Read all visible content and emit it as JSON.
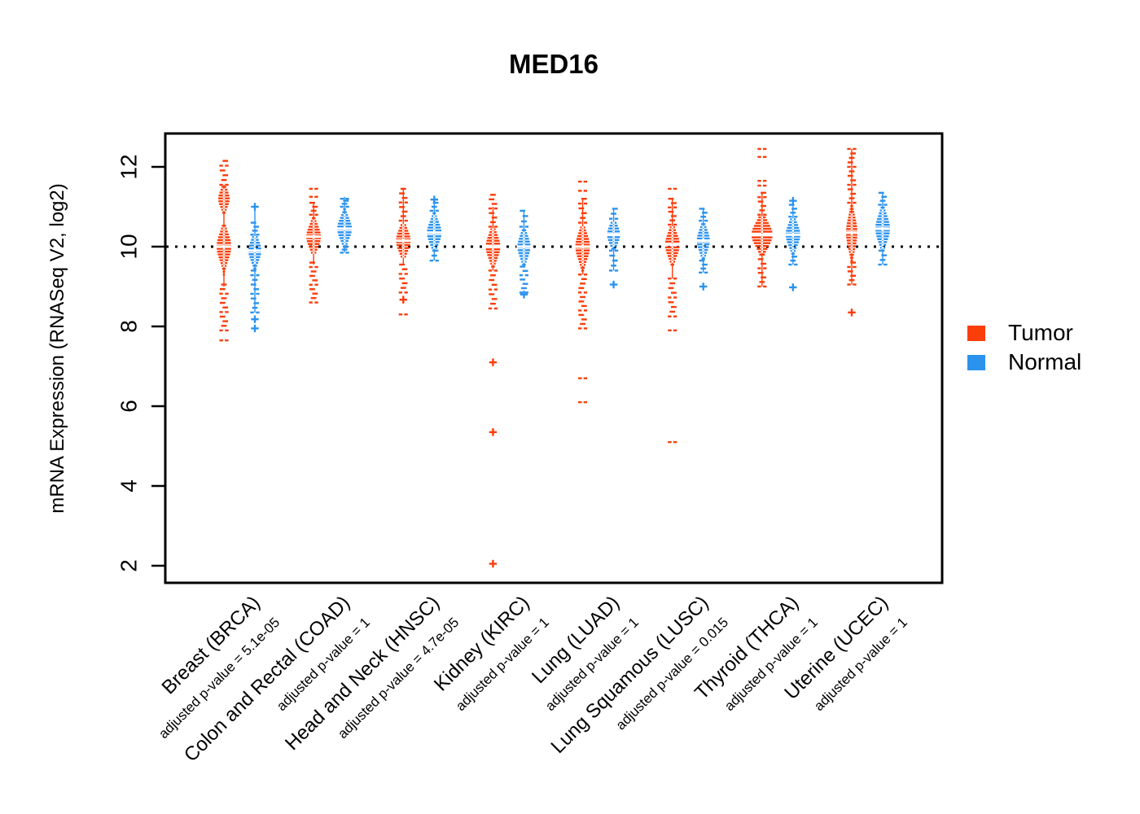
{
  "chart_data": {
    "type": "scatter",
    "variant": "strip-violin (tumor vs normal per cancer type)",
    "title": "MED16",
    "xlabel": "",
    "ylabel": "mRNA Expression (RNASeq V2, log2)",
    "ylim": [
      1.6,
      12.75
    ],
    "y_ticks": [
      2,
      4,
      6,
      8,
      10,
      12
    ],
    "reference_line": 10,
    "grid": false,
    "legend_position": "right",
    "colors": {
      "tumor": "#FB3D0A",
      "normal": "#2B93EE",
      "axis": "#000000"
    },
    "legend": [
      {
        "label": "Tumor",
        "color": "#FB3D0A"
      },
      {
        "label": "Normal",
        "color": "#2B93EE"
      }
    ],
    "categories": [
      {
        "label": "Breast (BRCA)",
        "pvalue_label": "adjusted p-value = 5.1e-05",
        "tumor": {
          "lobes": [
            {
              "c": 10.0,
              "sd": 0.33,
              "lo": 9.3,
              "hi": 10.55,
              "w": 9
            },
            {
              "c": 11.2,
              "sd": 0.22,
              "lo": 10.85,
              "hi": 11.5,
              "w": 7
            }
          ],
          "sparse": [
            [
              7.9,
              9.05
            ],
            [
              11.55,
              12.15
            ]
          ],
          "whisker": [
            9.0,
            11.55
          ],
          "outliers": [
            {
              "v": 7.65,
              "m": "dash"
            }
          ]
        },
        "normal": {
          "lobes": [
            {
              "c": 9.9,
              "sd": 0.26,
              "lo": 9.45,
              "hi": 10.25,
              "w": 8
            }
          ],
          "sparse": [
            [
              8.35,
              9.4
            ],
            [
              10.3,
              10.6
            ]
          ],
          "whisker": [
            8.35,
            11.0
          ],
          "outliers": [
            {
              "v": 11.0,
              "m": "plus"
            },
            {
              "v": 8.18,
              "m": "plus"
            },
            {
              "v": 7.95,
              "m": "plus"
            }
          ]
        }
      },
      {
        "label": "Colon and Rectal (COAD)",
        "pvalue_label": "adjusted p-value = 1",
        "tumor": {
          "lobes": [
            {
              "c": 10.25,
              "sd": 0.28,
              "lo": 9.85,
              "hi": 10.75,
              "w": 9
            }
          ],
          "sparse": [
            [
              8.6,
              9.6
            ],
            [
              10.8,
              11.1
            ]
          ],
          "whisker": [
            9.55,
            11.1
          ],
          "outliers": [
            {
              "v": 11.45,
              "m": "dash"
            },
            {
              "v": 11.25,
              "m": "dash"
            }
          ]
        },
        "normal": {
          "lobes": [
            {
              "c": 10.45,
              "sd": 0.27,
              "lo": 10.0,
              "hi": 10.95,
              "w": 9
            }
          ],
          "sparse": [
            [
              9.85,
              10.0
            ],
            [
              11.0,
              11.15
            ]
          ],
          "whisker": [
            9.85,
            11.25
          ],
          "outliers": [
            {
              "v": 11.2,
              "m": "dash"
            }
          ]
        }
      },
      {
        "label": "Head and Neck (HNSC)",
        "pvalue_label": "adjusted p-value = 4.7e-05",
        "tumor": {
          "lobes": [
            {
              "c": 10.15,
              "sd": 0.28,
              "lo": 9.75,
              "hi": 10.6,
              "w": 9
            }
          ],
          "sparse": [
            [
              8.85,
              9.55
            ],
            [
              10.65,
              11.45
            ]
          ],
          "whisker": [
            9.55,
            11.45
          ],
          "outliers": [
            {
              "v": 8.67,
              "m": "plus"
            },
            {
              "v": 8.3,
              "m": "dash"
            }
          ]
        },
        "normal": {
          "lobes": [
            {
              "c": 10.35,
              "sd": 0.28,
              "lo": 9.9,
              "hi": 10.85,
              "w": 9
            }
          ],
          "sparse": [
            [
              9.65,
              9.9
            ],
            [
              10.9,
              11.1
            ]
          ],
          "whisker": [
            9.65,
            11.15
          ],
          "outliers": [
            {
              "v": 11.18,
              "m": "plus"
            }
          ]
        }
      },
      {
        "label": "Kidney (KIRC)",
        "pvalue_label": "adjusted p-value = 1",
        "tumor": {
          "lobes": [
            {
              "c": 10.0,
              "sd": 0.3,
              "lo": 9.5,
              "hi": 10.45,
              "w": 9
            }
          ],
          "sparse": [
            [
              8.45,
              9.4
            ],
            [
              10.5,
              11.3
            ]
          ],
          "whisker": [
            9.4,
            11.0
          ],
          "outliers": [
            {
              "v": 7.1,
              "m": "plus"
            },
            {
              "v": 5.35,
              "m": "plus"
            },
            {
              "v": 2.05,
              "m": "plus"
            }
          ]
        },
        "normal": {
          "lobes": [
            {
              "c": 10.0,
              "sd": 0.28,
              "lo": 9.55,
              "hi": 10.45,
              "w": 8
            }
          ],
          "sparse": [
            [
              8.85,
              9.5
            ],
            [
              10.5,
              10.9
            ]
          ],
          "whisker": [
            9.5,
            10.9
          ],
          "outliers": [
            {
              "v": 8.8,
              "m": "plus"
            }
          ]
        }
      },
      {
        "label": "Lung (LUAD)",
        "pvalue_label": "adjusted p-value = 1",
        "tumor": {
          "lobes": [
            {
              "c": 10.0,
              "sd": 0.33,
              "lo": 9.4,
              "hi": 10.55,
              "w": 9
            }
          ],
          "sparse": [
            [
              7.95,
              9.3
            ],
            [
              10.6,
              11.2
            ]
          ],
          "whisker": [
            9.3,
            11.2
          ],
          "outliers": [
            {
              "v": 11.63,
              "m": "dash"
            },
            {
              "v": 11.4,
              "m": "dash"
            },
            {
              "v": 6.7,
              "m": "dash"
            },
            {
              "v": 6.1,
              "m": "dash"
            }
          ]
        },
        "normal": {
          "lobes": [
            {
              "c": 10.3,
              "sd": 0.24,
              "lo": 9.95,
              "hi": 10.65,
              "w": 8
            }
          ],
          "sparse": [
            [
              9.4,
              9.9
            ],
            [
              10.7,
              10.95
            ]
          ],
          "whisker": [
            9.4,
            10.95
          ],
          "outliers": [
            {
              "v": 9.05,
              "m": "plus"
            }
          ]
        }
      },
      {
        "label": "Lung Squamous (LUSC)",
        "pvalue_label": "adjusted p-value = 0.015",
        "tumor": {
          "lobes": [
            {
              "c": 10.05,
              "sd": 0.3,
              "lo": 9.55,
              "hi": 10.5,
              "w": 9
            }
          ],
          "sparse": [
            [
              8.25,
              9.2
            ],
            [
              10.55,
              11.2
            ]
          ],
          "whisker": [
            9.2,
            11.2
          ],
          "outliers": [
            {
              "v": 11.45,
              "m": "dash"
            },
            {
              "v": 7.9,
              "m": "dash"
            },
            {
              "v": 5.1,
              "m": "dash"
            }
          ]
        },
        "normal": {
          "lobes": [
            {
              "c": 10.15,
              "sd": 0.28,
              "lo": 9.7,
              "hi": 10.6,
              "w": 8
            }
          ],
          "sparse": [
            [
              9.35,
              9.65
            ],
            [
              10.65,
              10.95
            ]
          ],
          "whisker": [
            9.35,
            10.95
          ],
          "outliers": [
            {
              "v": 9.0,
              "m": "plus"
            }
          ]
        }
      },
      {
        "label": "Thyroid (THCA)",
        "pvalue_label": "adjusted p-value = 1",
        "tumor": {
          "lobes": [
            {
              "c": 10.3,
              "sd": 0.3,
              "lo": 9.8,
              "hi": 10.75,
              "w": 13
            }
          ],
          "sparse": [
            [
              9.0,
              9.8
            ],
            [
              10.8,
              11.35
            ]
          ],
          "whisker": [
            9.0,
            11.35
          ],
          "outliers": [
            {
              "v": 12.45,
              "m": "dash"
            },
            {
              "v": 12.25,
              "m": "dash"
            },
            {
              "v": 11.65,
              "m": "dash"
            },
            {
              "v": 11.53,
              "m": "dash"
            }
          ]
        },
        "normal": {
          "lobes": [
            {
              "c": 10.3,
              "sd": 0.28,
              "lo": 9.75,
              "hi": 10.7,
              "w": 9
            }
          ],
          "sparse": [
            [
              9.55,
              9.75
            ],
            [
              10.75,
              11.05
            ]
          ],
          "whisker": [
            9.55,
            11.1
          ],
          "outliers": [
            {
              "v": 11.15,
              "m": "plus"
            },
            {
              "v": 8.98,
              "m": "plus"
            }
          ]
        }
      },
      {
        "label": "Uterine (UCEC)",
        "pvalue_label": "adjusted p-value = 1",
        "tumor": {
          "lobes": [
            {
              "c": 10.35,
              "sd": 0.4,
              "lo": 9.65,
              "hi": 11.05,
              "w": 7
            }
          ],
          "sparse": [
            [
              9.05,
              9.6
            ],
            [
              11.1,
              12.45
            ]
          ],
          "whisker": [
            9.05,
            12.45
          ],
          "outliers": [
            {
              "v": 8.35,
              "m": "plus"
            }
          ]
        },
        "normal": {
          "lobes": [
            {
              "c": 10.45,
              "sd": 0.33,
              "lo": 9.9,
              "hi": 11.0,
              "w": 9
            }
          ],
          "sparse": [
            [
              9.55,
              9.9
            ],
            [
              11.05,
              11.35
            ]
          ],
          "whisker": [
            9.55,
            11.35
          ],
          "outliers": []
        }
      }
    ]
  }
}
